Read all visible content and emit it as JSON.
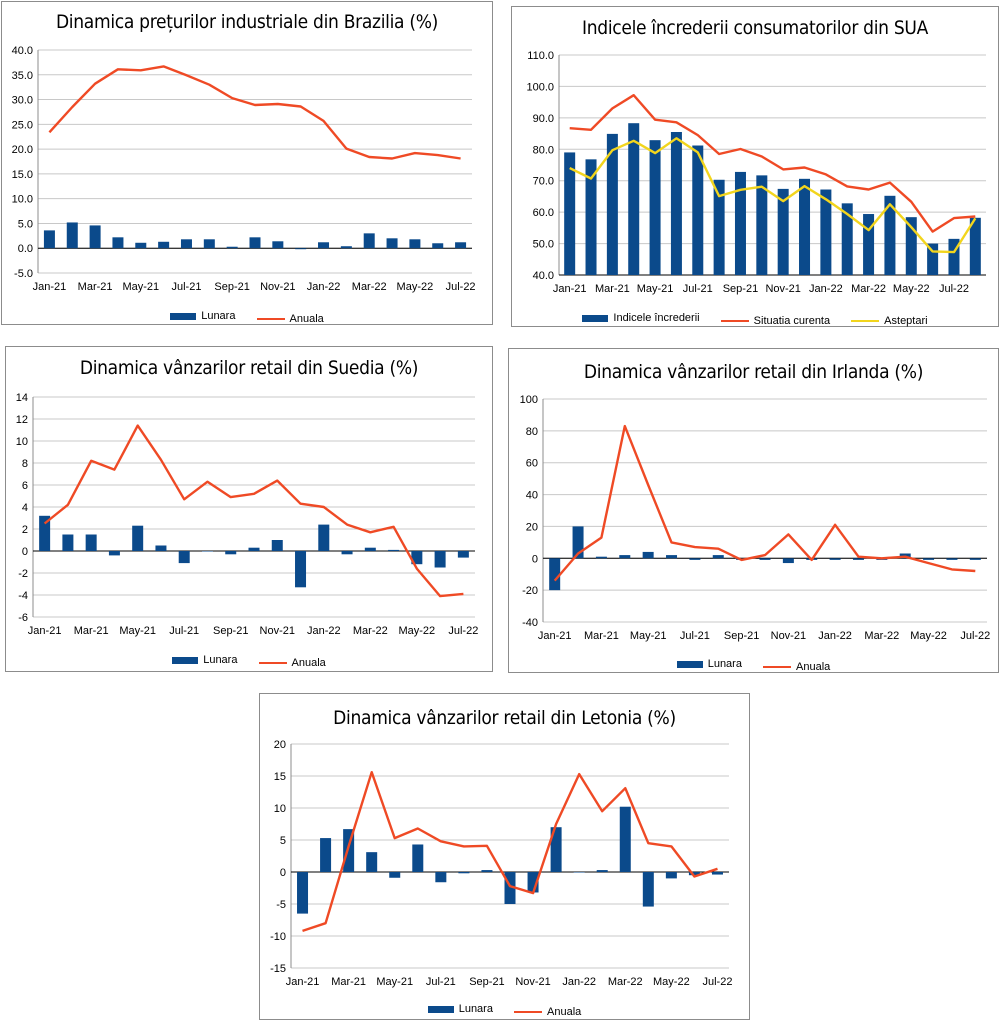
{
  "colors": {
    "bar": "#0b4a8b",
    "line": "#ef4a25",
    "line2": "#f2d51d",
    "grid": "#c8c8c8"
  },
  "chart_data": [
    {
      "id": "brazil",
      "type": "bar+line",
      "title": "Dinamica prețurilor industriale din Brazilia (%)",
      "months": [
        "Jan-21",
        "Feb-21",
        "Mar-21",
        "Apr-21",
        "May-21",
        "Jun-21",
        "Jul-21",
        "Aug-21",
        "Sep-21",
        "Oct-21",
        "Nov-21",
        "Dec-21",
        "Jan-22",
        "Feb-22",
        "Mar-22",
        "Apr-22",
        "May-22",
        "Jun-22",
        "Jul-22"
      ],
      "xtick_labels": [
        "Jan-21",
        "Mar-21",
        "May-21",
        "Jul-21",
        "Sep-21",
        "Nov-21",
        "Jan-22",
        "Mar-22",
        "May-22",
        "Jul-22"
      ],
      "ylim": [
        -5,
        40
      ],
      "ystep": 5,
      "ydecimals": 1,
      "ytick_labels": [
        "-5.0",
        "0.0",
        "5.0",
        "10.0",
        "15.0",
        "20.0",
        "25.0",
        "30.0",
        "35.0",
        "40.0"
      ],
      "series": [
        {
          "name": "Lunara",
          "kind": "bar",
          "values": [
            3.6,
            5.2,
            4.6,
            2.2,
            1.1,
            1.3,
            1.8,
            1.8,
            0.3,
            2.2,
            1.4,
            -0.2,
            1.2,
            0.4,
            3.0,
            2.0,
            1.8,
            1.0,
            1.2
          ]
        },
        {
          "name": "Anuala",
          "kind": "line",
          "values": [
            23.4,
            28.5,
            33.2,
            36.1,
            35.9,
            36.7,
            34.9,
            33.0,
            30.3,
            28.9,
            29.1,
            28.6,
            25.7,
            20.1,
            18.4,
            18.1,
            19.2,
            18.8,
            18.1
          ]
        }
      ]
    },
    {
      "id": "usa",
      "type": "bar+line",
      "title": "Indicele încrederii consumatorilor din SUA",
      "months": [
        "Jan-21",
        "Feb-21",
        "Mar-21",
        "Apr-21",
        "May-21",
        "Jun-21",
        "Jul-21",
        "Aug-21",
        "Sep-21",
        "Oct-21",
        "Nov-21",
        "Dec-21",
        "Jan-22",
        "Feb-22",
        "Mar-22",
        "Apr-22",
        "May-22",
        "Jun-22",
        "Jul-22",
        "Aug-22"
      ],
      "xtick_labels": [
        "Jan-21",
        "Mar-21",
        "May-21",
        "Jul-21",
        "Sep-21",
        "Nov-21",
        "Jan-22",
        "Mar-22",
        "May-22",
        "Jul-22"
      ],
      "ylim": [
        40,
        110
      ],
      "ystep": 10,
      "ydecimals": 1,
      "ytick_labels": [
        "40.0",
        "50.0",
        "60.0",
        "70.0",
        "80.0",
        "90.0",
        "100.0",
        "110.0"
      ],
      "series": [
        {
          "name": "Indicele încrederii",
          "kind": "bar",
          "values": [
            79.0,
            76.8,
            84.9,
            88.3,
            82.9,
            85.5,
            81.2,
            70.3,
            72.8,
            71.7,
            67.4,
            70.6,
            67.2,
            62.8,
            59.4,
            65.2,
            58.4,
            50.0,
            51.5,
            58.2
          ]
        },
        {
          "name": "Situatia curenta",
          "kind": "line",
          "values": [
            86.7,
            86.2,
            93.0,
            97.2,
            89.4,
            88.6,
            84.5,
            78.5,
            80.1,
            77.7,
            73.6,
            74.2,
            72.0,
            68.2,
            67.2,
            69.4,
            63.3,
            53.8,
            58.1,
            58.6
          ]
        },
        {
          "name": "Asteptari",
          "kind": "line2",
          "values": [
            74.0,
            70.7,
            79.7,
            82.7,
            78.8,
            83.5,
            79.0,
            65.1,
            67.1,
            68.1,
            63.5,
            68.3,
            64.1,
            59.4,
            54.3,
            62.5,
            55.2,
            47.5,
            47.3,
            58.0
          ]
        }
      ]
    },
    {
      "id": "sweden",
      "type": "bar+line",
      "title": "Dinamica vânzarilor retail din Suedia (%)",
      "months": [
        "Jan-21",
        "Feb-21",
        "Mar-21",
        "Apr-21",
        "May-21",
        "Jun-21",
        "Jul-21",
        "Aug-21",
        "Sep-21",
        "Oct-21",
        "Nov-21",
        "Dec-21",
        "Jan-22",
        "Feb-22",
        "Mar-22",
        "Apr-22",
        "May-22",
        "Jun-22",
        "Jul-22"
      ],
      "xtick_labels": [
        "Jan-21",
        "Mar-21",
        "May-21",
        "Jul-21",
        "Sep-21",
        "Nov-21",
        "Jan-22",
        "Mar-22",
        "May-22",
        "Jul-22"
      ],
      "ylim": [
        -6,
        14
      ],
      "ystep": 2,
      "ydecimals": 0,
      "ytick_labels": [
        "-6",
        "-4",
        "-2",
        "0",
        "2",
        "4",
        "6",
        "8",
        "10",
        "12",
        "14"
      ],
      "series": [
        {
          "name": "Lunara",
          "kind": "bar",
          "values": [
            3.2,
            1.5,
            1.5,
            -0.4,
            2.3,
            0.5,
            -1.1,
            0.0,
            -0.3,
            0.3,
            1.0,
            -3.3,
            2.4,
            -0.3,
            0.3,
            0.1,
            -1.2,
            -1.5,
            -0.6
          ]
        },
        {
          "name": "Anuala",
          "kind": "line",
          "values": [
            2.5,
            4.2,
            8.2,
            7.4,
            11.4,
            8.3,
            4.7,
            6.3,
            4.9,
            5.2,
            6.4,
            4.3,
            4.0,
            2.4,
            1.7,
            2.2,
            -1.6,
            -4.1,
            -3.9
          ]
        }
      ]
    },
    {
      "id": "ireland",
      "type": "bar+line",
      "title": "Dinamica vânzarilor retail din Irlanda (%)",
      "months": [
        "Jan-21",
        "Feb-21",
        "Mar-21",
        "Apr-21",
        "May-21",
        "Jun-21",
        "Jul-21",
        "Aug-21",
        "Sep-21",
        "Oct-21",
        "Nov-21",
        "Dec-21",
        "Jan-22",
        "Feb-22",
        "Mar-22",
        "Apr-22",
        "May-22",
        "Jun-22",
        "Jul-22"
      ],
      "xtick_labels": [
        "Jan-21",
        "Mar-21",
        "May-21",
        "Jul-21",
        "Sep-21",
        "Nov-21",
        "Jan-22",
        "Mar-22",
        "May-22",
        "Jul-22"
      ],
      "ylim": [
        -40,
        100
      ],
      "ystep": 20,
      "ydecimals": 0,
      "ytick_labels": [
        "-40",
        "-20",
        "0",
        "20",
        "40",
        "60",
        "80",
        "100"
      ],
      "series": [
        {
          "name": "Lunara",
          "kind": "bar",
          "values": [
            -20,
            20,
            1,
            2,
            4,
            2,
            -1,
            2,
            -1,
            -1,
            -3,
            -1,
            -1,
            -1,
            -1,
            3,
            -1,
            -1,
            -1
          ]
        },
        {
          "name": "Anuala",
          "kind": "line",
          "values": [
            -14,
            3,
            13,
            83,
            46,
            10,
            7,
            6,
            -1,
            2,
            15,
            -1,
            21,
            1,
            0,
            1,
            -3,
            -7,
            -8
          ]
        }
      ]
    },
    {
      "id": "latvia",
      "type": "bar+line",
      "title": "Dinamica vânzarilor retail din Letonia (%)",
      "months": [
        "Jan-21",
        "Feb-21",
        "Mar-21",
        "Apr-21",
        "May-21",
        "Jun-21",
        "Jul-21",
        "Aug-21",
        "Sep-21",
        "Oct-21",
        "Nov-21",
        "Dec-21",
        "Jan-22",
        "Feb-22",
        "Mar-22",
        "Apr-22",
        "May-22",
        "Jun-22",
        "Jul-22"
      ],
      "xtick_labels": [
        "Jan-21",
        "Mar-21",
        "May-21",
        "Jul-21",
        "Sep-21",
        "Nov-21",
        "Jan-22",
        "Mar-22",
        "May-22",
        "Jul-22"
      ],
      "ylim": [
        -15,
        20
      ],
      "ystep": 5,
      "ydecimals": 0,
      "ytick_labels": [
        "-15",
        "-10",
        "-5",
        "0",
        "5",
        "10",
        "15",
        "20"
      ],
      "series": [
        {
          "name": "Lunara",
          "kind": "bar",
          "values": [
            -6.5,
            5.3,
            6.7,
            3.1,
            -0.9,
            4.3,
            -1.6,
            -0.2,
            0.3,
            -5.0,
            -3.2,
            7.0,
            0.0,
            0.3,
            10.2,
            -5.4,
            -1.0,
            -0.5,
            -0.4
          ]
        },
        {
          "name": "Anuala",
          "kind": "line",
          "values": [
            -9.2,
            -8.0,
            4.0,
            15.6,
            5.3,
            6.8,
            4.8,
            4.0,
            4.1,
            -2.2,
            -3.3,
            7.5,
            15.3,
            9.5,
            13.1,
            4.5,
            4.0,
            -0.7,
            0.5
          ]
        }
      ]
    }
  ]
}
